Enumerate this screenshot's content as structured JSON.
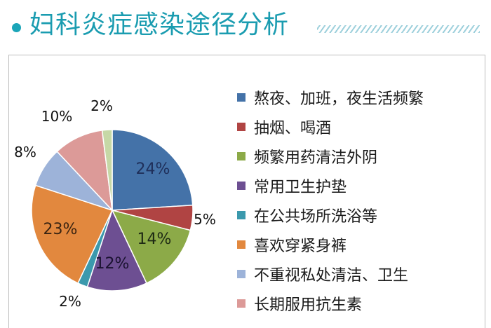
{
  "title": "妇科炎症感染途径分析",
  "chart_data": {
    "type": "pie",
    "slices": [
      {
        "label": "熬夜、加班，夜生活频繁",
        "value": 24,
        "value_label": "24%",
        "color": "#4472a8"
      },
      {
        "label": "抽烟、喝酒",
        "value": 5,
        "value_label": "5%",
        "color": "#b04443"
      },
      {
        "label": "频繁用药清洁外阴",
        "value": 14,
        "value_label": "14%",
        "color": "#8caa48"
      },
      {
        "label": "常用卫生护垫",
        "value": 12,
        "value_label": "12%",
        "color": "#6d4f92"
      },
      {
        "label": "在公共场所洗浴等",
        "value": 2,
        "value_label": "2%",
        "color": "#3b99ad"
      },
      {
        "label": "喜欢穿紧身裤",
        "value": 23,
        "value_label": "23%",
        "color": "#e2883e"
      },
      {
        "label": "不重视私处清洁、卫生",
        "value": 8,
        "value_label": "8%",
        "color": "#9db3d9"
      },
      {
        "label": "长期服用抗生素",
        "value": 10,
        "value_label": "10%",
        "color": "#dc9a98"
      },
      {
        "label": "",
        "value": 2,
        "value_label": "2%",
        "color": "#c6d8a6"
      }
    ],
    "legend_placement": "right"
  }
}
